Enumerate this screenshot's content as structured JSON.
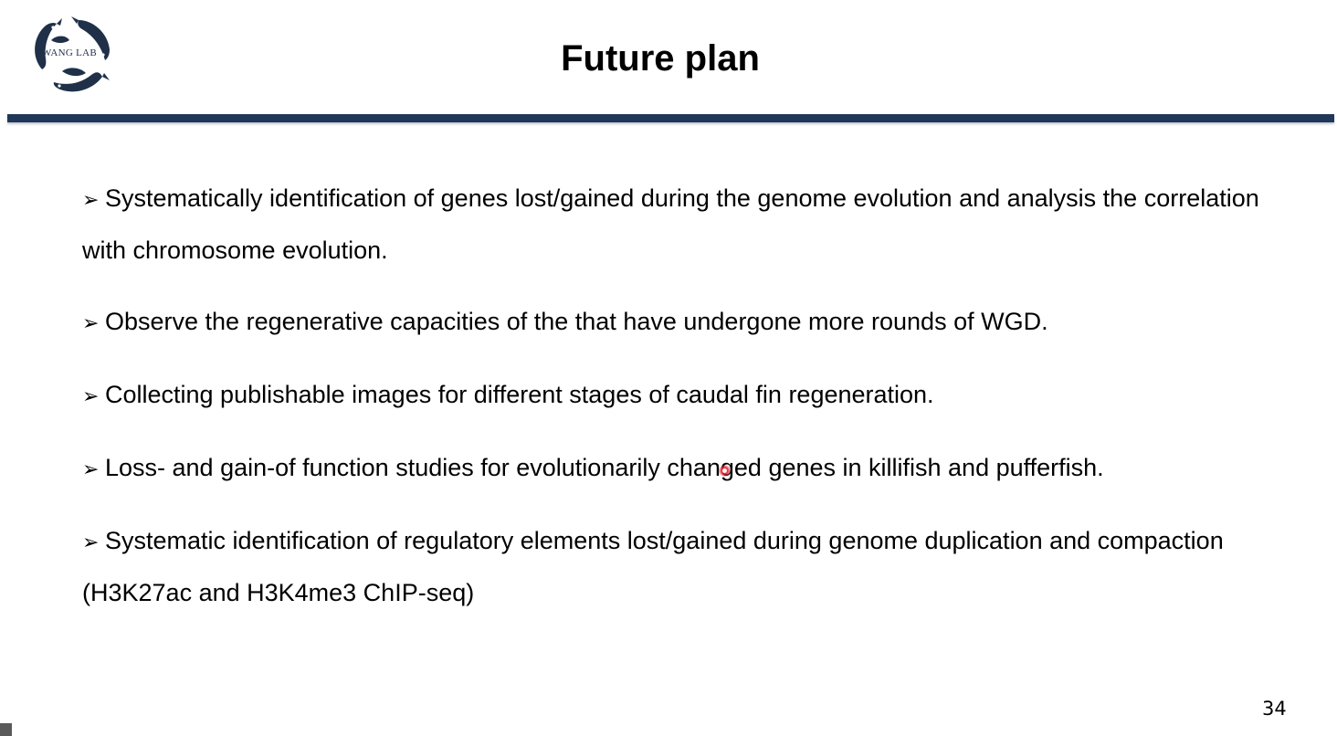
{
  "header": {
    "title": "Future plan",
    "logo_text": "WANG LAB"
  },
  "bullets": [
    {
      "marker": "➢",
      "text": "Systematically identification of genes lost/gained during the genome evolution and analysis the correlation with chromosome evolution."
    },
    {
      "marker": "➢",
      "text": "Observe the regenerative capacities of the that have undergone more rounds of WGD."
    },
    {
      "marker": "➢",
      "text": "Collecting publishable images for different stages of caudal fin regeneration."
    },
    {
      "marker": "➢",
      "text": "Loss- and gain-of function studies for evolutionarily changed genes in killifish and pufferfish."
    },
    {
      "marker": "➢",
      "text": "Systematic identification of regulatory elements lost/gained during genome duplication and compaction (H3K27ac and H3K4me3 ChIP-seq)"
    }
  ],
  "footer": {
    "page_number": "34"
  },
  "colors": {
    "rule": "#1f3859",
    "logo": "#1f3048",
    "pointer": "#e8202a"
  }
}
